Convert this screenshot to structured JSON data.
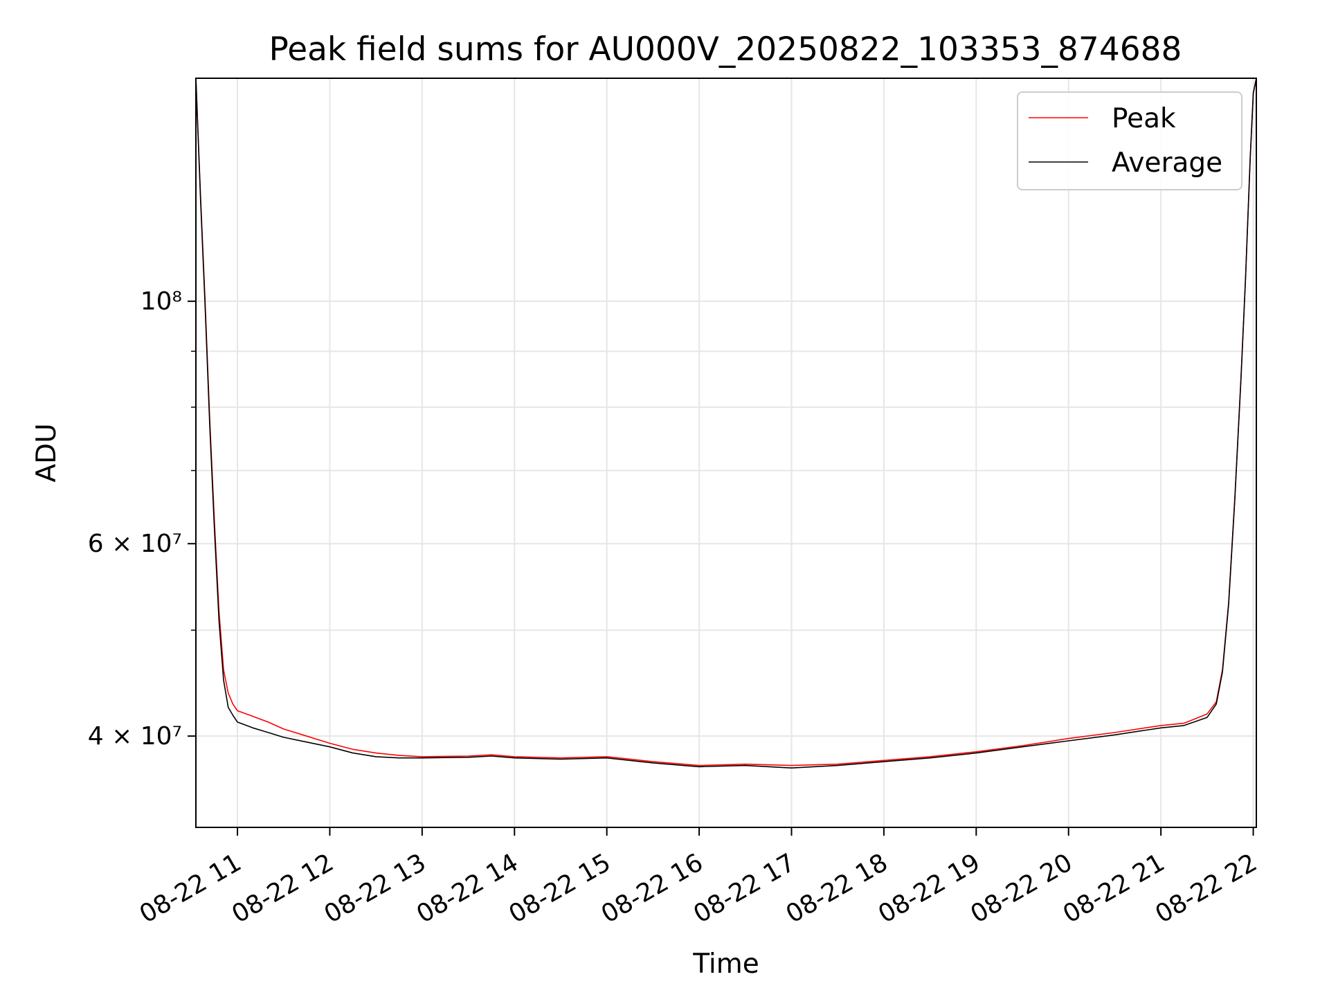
{
  "chart_data": {
    "type": "line",
    "title": "Peak field sums for AU000V_20250822_103353_874688",
    "xlabel": "Time",
    "ylabel": "ADU",
    "y_scale": "log",
    "grid": true,
    "legend_position": "top-right",
    "xlim": [
      "2025-08-22 10:33",
      "2025-08-22 22:02"
    ],
    "ylim": [
      33000000,
      160000000
    ],
    "x_ticks": [
      {
        "t": "2025-08-22 11:00",
        "label": "08-22 11"
      },
      {
        "t": "2025-08-22 12:00",
        "label": "08-22 12"
      },
      {
        "t": "2025-08-22 13:00",
        "label": "08-22 13"
      },
      {
        "t": "2025-08-22 14:00",
        "label": "08-22 14"
      },
      {
        "t": "2025-08-22 15:00",
        "label": "08-22 15"
      },
      {
        "t": "2025-08-22 16:00",
        "label": "08-22 16"
      },
      {
        "t": "2025-08-22 17:00",
        "label": "08-22 17"
      },
      {
        "t": "2025-08-22 18:00",
        "label": "08-22 18"
      },
      {
        "t": "2025-08-22 19:00",
        "label": "08-22 19"
      },
      {
        "t": "2025-08-22 20:00",
        "label": "08-22 20"
      },
      {
        "t": "2025-08-22 21:00",
        "label": "08-22 21"
      },
      {
        "t": "2025-08-22 22:00",
        "label": "08-22 22"
      }
    ],
    "y_ticks": [
      {
        "v": 40000000,
        "label": "4 × 10⁷"
      },
      {
        "v": 60000000,
        "label": "6 × 10⁷"
      },
      {
        "v": 100000000,
        "label": "10⁸"
      }
    ],
    "y_minor_ticks": [
      50000000,
      70000000,
      80000000,
      90000000
    ],
    "series": [
      {
        "name": "Peak",
        "color": "#ff0000",
        "points": [
          [
            "2025-08-22 10:33",
            160000000
          ],
          [
            "2025-08-22 10:36",
            125000000
          ],
          [
            "2025-08-22 10:39",
            100000000
          ],
          [
            "2025-08-22 10:42",
            78000000
          ],
          [
            "2025-08-22 10:45",
            63000000
          ],
          [
            "2025-08-22 10:48",
            52000000
          ],
          [
            "2025-08-22 10:51",
            46000000
          ],
          [
            "2025-08-22 10:54",
            43800000
          ],
          [
            "2025-08-22 10:57",
            42800000
          ],
          [
            "2025-08-22 11:00",
            42200000
          ],
          [
            "2025-08-22 11:10",
            41700000
          ],
          [
            "2025-08-22 11:20",
            41200000
          ],
          [
            "2025-08-22 11:30",
            40600000
          ],
          [
            "2025-08-22 11:45",
            40000000
          ],
          [
            "2025-08-22 12:00",
            39400000
          ],
          [
            "2025-08-22 12:15",
            38900000
          ],
          [
            "2025-08-22 12:30",
            38600000
          ],
          [
            "2025-08-22 12:45",
            38400000
          ],
          [
            "2025-08-22 13:00",
            38300000
          ],
          [
            "2025-08-22 13:30",
            38350000
          ],
          [
            "2025-08-22 13:45",
            38450000
          ],
          [
            "2025-08-22 14:00",
            38300000
          ],
          [
            "2025-08-22 14:30",
            38200000
          ],
          [
            "2025-08-22 15:00",
            38300000
          ],
          [
            "2025-08-22 15:30",
            37900000
          ],
          [
            "2025-08-22 16:00",
            37600000
          ],
          [
            "2025-08-22 16:30",
            37700000
          ],
          [
            "2025-08-22 17:00",
            37600000
          ],
          [
            "2025-08-22 17:30",
            37700000
          ],
          [
            "2025-08-22 18:00",
            38000000
          ],
          [
            "2025-08-22 18:30",
            38300000
          ],
          [
            "2025-08-22 19:00",
            38700000
          ],
          [
            "2025-08-22 19:30",
            39200000
          ],
          [
            "2025-08-22 20:00",
            39800000
          ],
          [
            "2025-08-22 20:30",
            40300000
          ],
          [
            "2025-08-22 21:00",
            40900000
          ],
          [
            "2025-08-22 21:15",
            41100000
          ],
          [
            "2025-08-22 21:30",
            41900000
          ],
          [
            "2025-08-22 21:36",
            43000000
          ],
          [
            "2025-08-22 21:40",
            46000000
          ],
          [
            "2025-08-22 21:44",
            53000000
          ],
          [
            "2025-08-22 21:48",
            66000000
          ],
          [
            "2025-08-22 21:52",
            85000000
          ],
          [
            "2025-08-22 21:55",
            105000000
          ],
          [
            "2025-08-22 21:58",
            135000000
          ],
          [
            "2025-08-22 22:00",
            155000000
          ],
          [
            "2025-08-22 22:02",
            160000000
          ]
        ]
      },
      {
        "name": "Average",
        "color": "#000000",
        "points": [
          [
            "2025-08-22 10:33",
            160000000
          ],
          [
            "2025-08-22 10:36",
            124000000
          ],
          [
            "2025-08-22 10:39",
            99000000
          ],
          [
            "2025-08-22 10:42",
            77000000
          ],
          [
            "2025-08-22 10:45",
            62000000
          ],
          [
            "2025-08-22 10:48",
            51000000
          ],
          [
            "2025-08-22 10:51",
            45000000
          ],
          [
            "2025-08-22 10:54",
            42500000
          ],
          [
            "2025-08-22 10:57",
            41800000
          ],
          [
            "2025-08-22 11:00",
            41200000
          ],
          [
            "2025-08-22 11:10",
            40700000
          ],
          [
            "2025-08-22 11:20",
            40300000
          ],
          [
            "2025-08-22 11:30",
            39900000
          ],
          [
            "2025-08-22 11:45",
            39500000
          ],
          [
            "2025-08-22 12:00",
            39100000
          ],
          [
            "2025-08-22 12:15",
            38600000
          ],
          [
            "2025-08-22 12:30",
            38300000
          ],
          [
            "2025-08-22 12:45",
            38200000
          ],
          [
            "2025-08-22 13:00",
            38200000
          ],
          [
            "2025-08-22 13:30",
            38250000
          ],
          [
            "2025-08-22 13:45",
            38350000
          ],
          [
            "2025-08-22 14:00",
            38200000
          ],
          [
            "2025-08-22 14:30",
            38100000
          ],
          [
            "2025-08-22 15:00",
            38200000
          ],
          [
            "2025-08-22 15:30",
            37800000
          ],
          [
            "2025-08-22 16:00",
            37500000
          ],
          [
            "2025-08-22 16:30",
            37600000
          ],
          [
            "2025-08-22 17:00",
            37400000
          ],
          [
            "2025-08-22 17:30",
            37600000
          ],
          [
            "2025-08-22 18:00",
            37900000
          ],
          [
            "2025-08-22 18:30",
            38200000
          ],
          [
            "2025-08-22 19:00",
            38600000
          ],
          [
            "2025-08-22 19:30",
            39100000
          ],
          [
            "2025-08-22 20:00",
            39600000
          ],
          [
            "2025-08-22 20:30",
            40100000
          ],
          [
            "2025-08-22 21:00",
            40700000
          ],
          [
            "2025-08-22 21:15",
            40900000
          ],
          [
            "2025-08-22 21:30",
            41600000
          ],
          [
            "2025-08-22 21:36",
            42800000
          ],
          [
            "2025-08-22 21:40",
            45800000
          ],
          [
            "2025-08-22 21:44",
            52800000
          ],
          [
            "2025-08-22 21:48",
            65800000
          ],
          [
            "2025-08-22 21:52",
            84800000
          ],
          [
            "2025-08-22 21:55",
            104800000
          ],
          [
            "2025-08-22 21:58",
            134800000
          ],
          [
            "2025-08-22 22:00",
            155000000
          ],
          [
            "2025-08-22 22:02",
            160000000
          ]
        ]
      }
    ]
  }
}
